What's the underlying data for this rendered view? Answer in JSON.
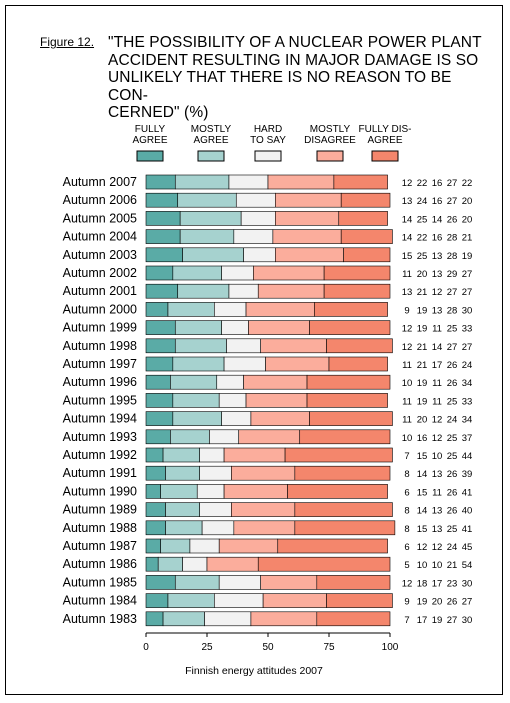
{
  "figure_label": "Figure 12.",
  "title": "\"THE POSSIBILITY OF A NUCLEAR POWER PLANT ACCIDENT RESULTING IN MAJOR DAMAGE IS SO UNLIKELY THAT THERE IS NO REASON TO BE CON- CERNED\" (%)",
  "title_lines": [
    "\"THE POSSIBILITY OF A NUCLEAR POWER PLANT",
    "ACCIDENT RESULTING IN MAJOR DAMAGE IS SO",
    "UNLIKELY THAT THERE IS NO REASON TO BE CON-",
    "CERNED\" (%)"
  ],
  "source_note": "Finnish energy attitudes 2007",
  "colors": {
    "fully_agree": "#5aaba6",
    "mostly_agree": "#a6d2cf",
    "hard_to_say": "#f2f2f2",
    "mostly_disagree": "#fbad9c",
    "fully_disagree": "#f4866c"
  },
  "chart_data": {
    "type": "bar",
    "orientation": "horizontal",
    "stacked": true,
    "xlim": [
      0,
      100
    ],
    "xticks": [
      0,
      25,
      50,
      75,
      100
    ],
    "legend_position": "top",
    "categories": [
      "Autumn 2007",
      "Autumn 2006",
      "Autumn 2005",
      "Autumn 2004",
      "Autumn 2003",
      "Autumn 2002",
      "Autumn 2001",
      "Autumn 2000",
      "Autumn 1999",
      "Autumn 1998",
      "Autumn 1997",
      "Autumn 1996",
      "Autumn 1995",
      "Autumn 1994",
      "Autumn 1993",
      "Autumn 1992",
      "Autumn 1991",
      "Autumn 1990",
      "Autumn 1989",
      "Autumn 1988",
      "Autumn 1987",
      "Autumn 1986",
      "Autumn 1985",
      "Autumn 1984",
      "Autumn 1983"
    ],
    "series": [
      {
        "name": "FULLY AGREE",
        "legend_lines": [
          "FULLY",
          "AGREE"
        ],
        "color_key": "fully_agree",
        "values": [
          12,
          13,
          14,
          14,
          15,
          11,
          13,
          9,
          12,
          12,
          11,
          10,
          11,
          11,
          10,
          7,
          8,
          6,
          8,
          8,
          6,
          5,
          12,
          9,
          7
        ]
      },
      {
        "name": "MOSTLY AGREE",
        "legend_lines": [
          "MOSTLY",
          "AGREE"
        ],
        "color_key": "mostly_agree",
        "values": [
          22,
          24,
          25,
          22,
          25,
          20,
          21,
          19,
          19,
          21,
          21,
          19,
          19,
          20,
          16,
          15,
          14,
          15,
          14,
          15,
          12,
          10,
          18,
          19,
          17
        ]
      },
      {
        "name": "HARD TO SAY",
        "legend_lines": [
          "HARD",
          "TO SAY"
        ],
        "color_key": "hard_to_say",
        "values": [
          16,
          16,
          14,
          16,
          13,
          13,
          12,
          13,
          11,
          14,
          17,
          11,
          11,
          12,
          12,
          10,
          13,
          11,
          13,
          13,
          12,
          10,
          17,
          20,
          19
        ]
      },
      {
        "name": "MOSTLY DISAGREE",
        "legend_lines": [
          "MOSTLY",
          "DISAGREE"
        ],
        "color_key": "mostly_disagree",
        "values": [
          27,
          27,
          26,
          28,
          28,
          29,
          27,
          28,
          25,
          27,
          26,
          26,
          25,
          24,
          25,
          25,
          26,
          26,
          26,
          25,
          24,
          21,
          23,
          26,
          27
        ]
      },
      {
        "name": "FULLY DISAGREE",
        "legend_lines": [
          "FULLY DIS-",
          "AGREE"
        ],
        "color_key": "fully_disagree",
        "values": [
          22,
          20,
          20,
          21,
          19,
          27,
          27,
          30,
          33,
          27,
          24,
          34,
          33,
          34,
          37,
          44,
          39,
          41,
          40,
          41,
          45,
          54,
          30,
          27,
          30
        ]
      }
    ]
  }
}
